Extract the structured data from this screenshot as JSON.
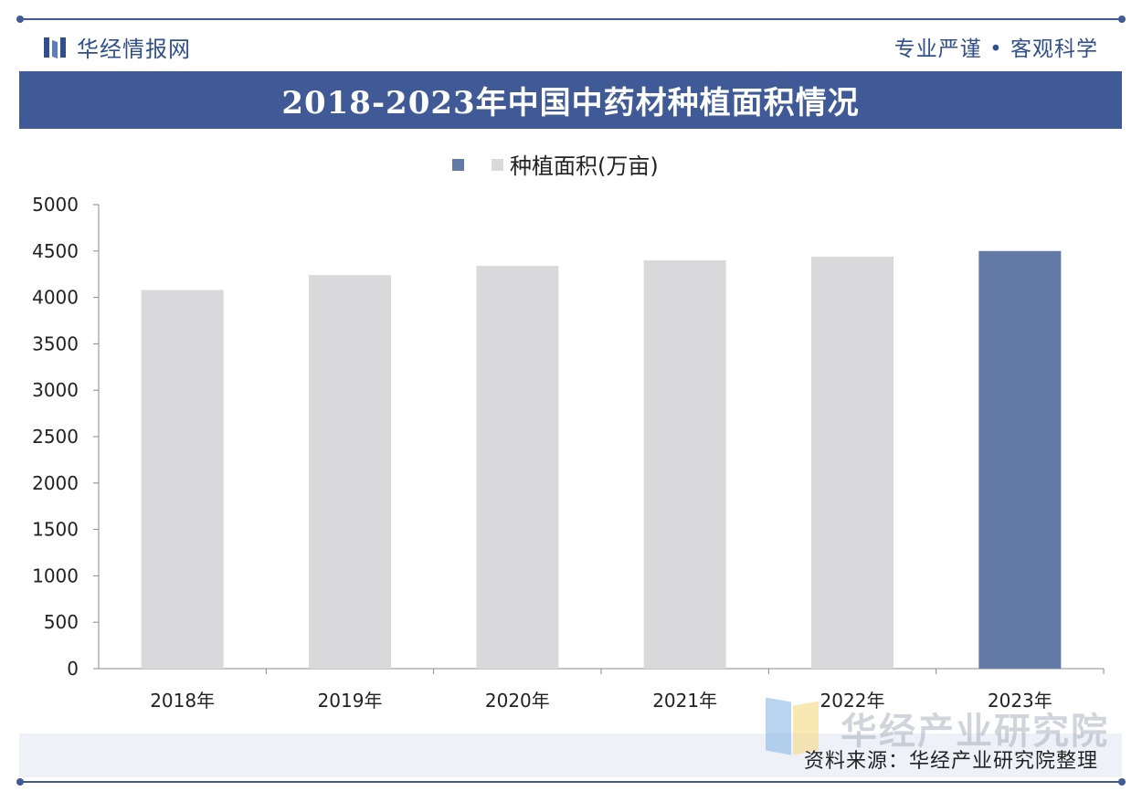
{
  "header": {
    "brand_name": "华经情报网",
    "slogan": "专业严谨 • 客观科学"
  },
  "title": "2018-2023年中国中药材种植面积情况",
  "footer": {
    "source": "资料来源：华经产业研究院整理",
    "watermark_text": "华经产业研究院"
  },
  "colors": {
    "accent": "#3f5a96",
    "bar_default": "#d9d9db",
    "bar_highlight": "#637aa6"
  },
  "chart_data": {
    "type": "bar",
    "categories": [
      "2018年",
      "2019年",
      "2020年",
      "2021年",
      "2022年",
      "2023年"
    ],
    "series": [
      {
        "name": "种植面积(万亩)",
        "values": [
          4080,
          4240,
          4340,
          4400,
          4440,
          4500
        ]
      }
    ],
    "highlight_index": 5,
    "ylim": [
      0,
      5000
    ],
    "yticks": [
      0,
      500,
      1000,
      1500,
      2000,
      2500,
      3000,
      3500,
      4000,
      4500,
      5000
    ],
    "legend_position": "top-center",
    "grid": false
  }
}
